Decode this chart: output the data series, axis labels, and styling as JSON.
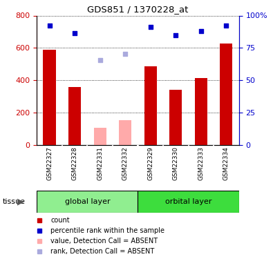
{
  "title": "GDS851 / 1370228_at",
  "samples": [
    "GSM22327",
    "GSM22328",
    "GSM22331",
    "GSM22332",
    "GSM22329",
    "GSM22330",
    "GSM22333",
    "GSM22334"
  ],
  "bar_values": [
    590,
    360,
    null,
    null,
    487,
    342,
    413,
    628
  ],
  "bar_absent_values": [
    null,
    null,
    108,
    152,
    null,
    null,
    null,
    null
  ],
  "bar_color_present": "#cc0000",
  "bar_color_absent": "#ffaaaa",
  "rank_values": [
    740,
    690,
    null,
    null,
    730,
    680,
    705,
    740
  ],
  "rank_absent_values": [
    null,
    null,
    525,
    565,
    null,
    null,
    null,
    null
  ],
  "rank_color_present": "#0000cc",
  "rank_color_absent": "#aaaadd",
  "ylim_left": [
    0,
    800
  ],
  "ylim_right": [
    0,
    100
  ],
  "yticks_left": [
    0,
    200,
    400,
    600,
    800
  ],
  "yticks_right": [
    0,
    25,
    50,
    75,
    100
  ],
  "yticklabels_right": [
    "0",
    "25",
    "50",
    "75",
    "100%"
  ],
  "global_color": "#90ee90",
  "orbital_color": "#3ddd3d",
  "xtick_bg_color": "#cccccc",
  "legend_items": [
    {
      "label": "count",
      "color": "#cc0000"
    },
    {
      "label": "percentile rank within the sample",
      "color": "#0000cc"
    },
    {
      "label": "value, Detection Call = ABSENT",
      "color": "#ffaaaa"
    },
    {
      "label": "rank, Detection Call = ABSENT",
      "color": "#aaaadd"
    }
  ]
}
